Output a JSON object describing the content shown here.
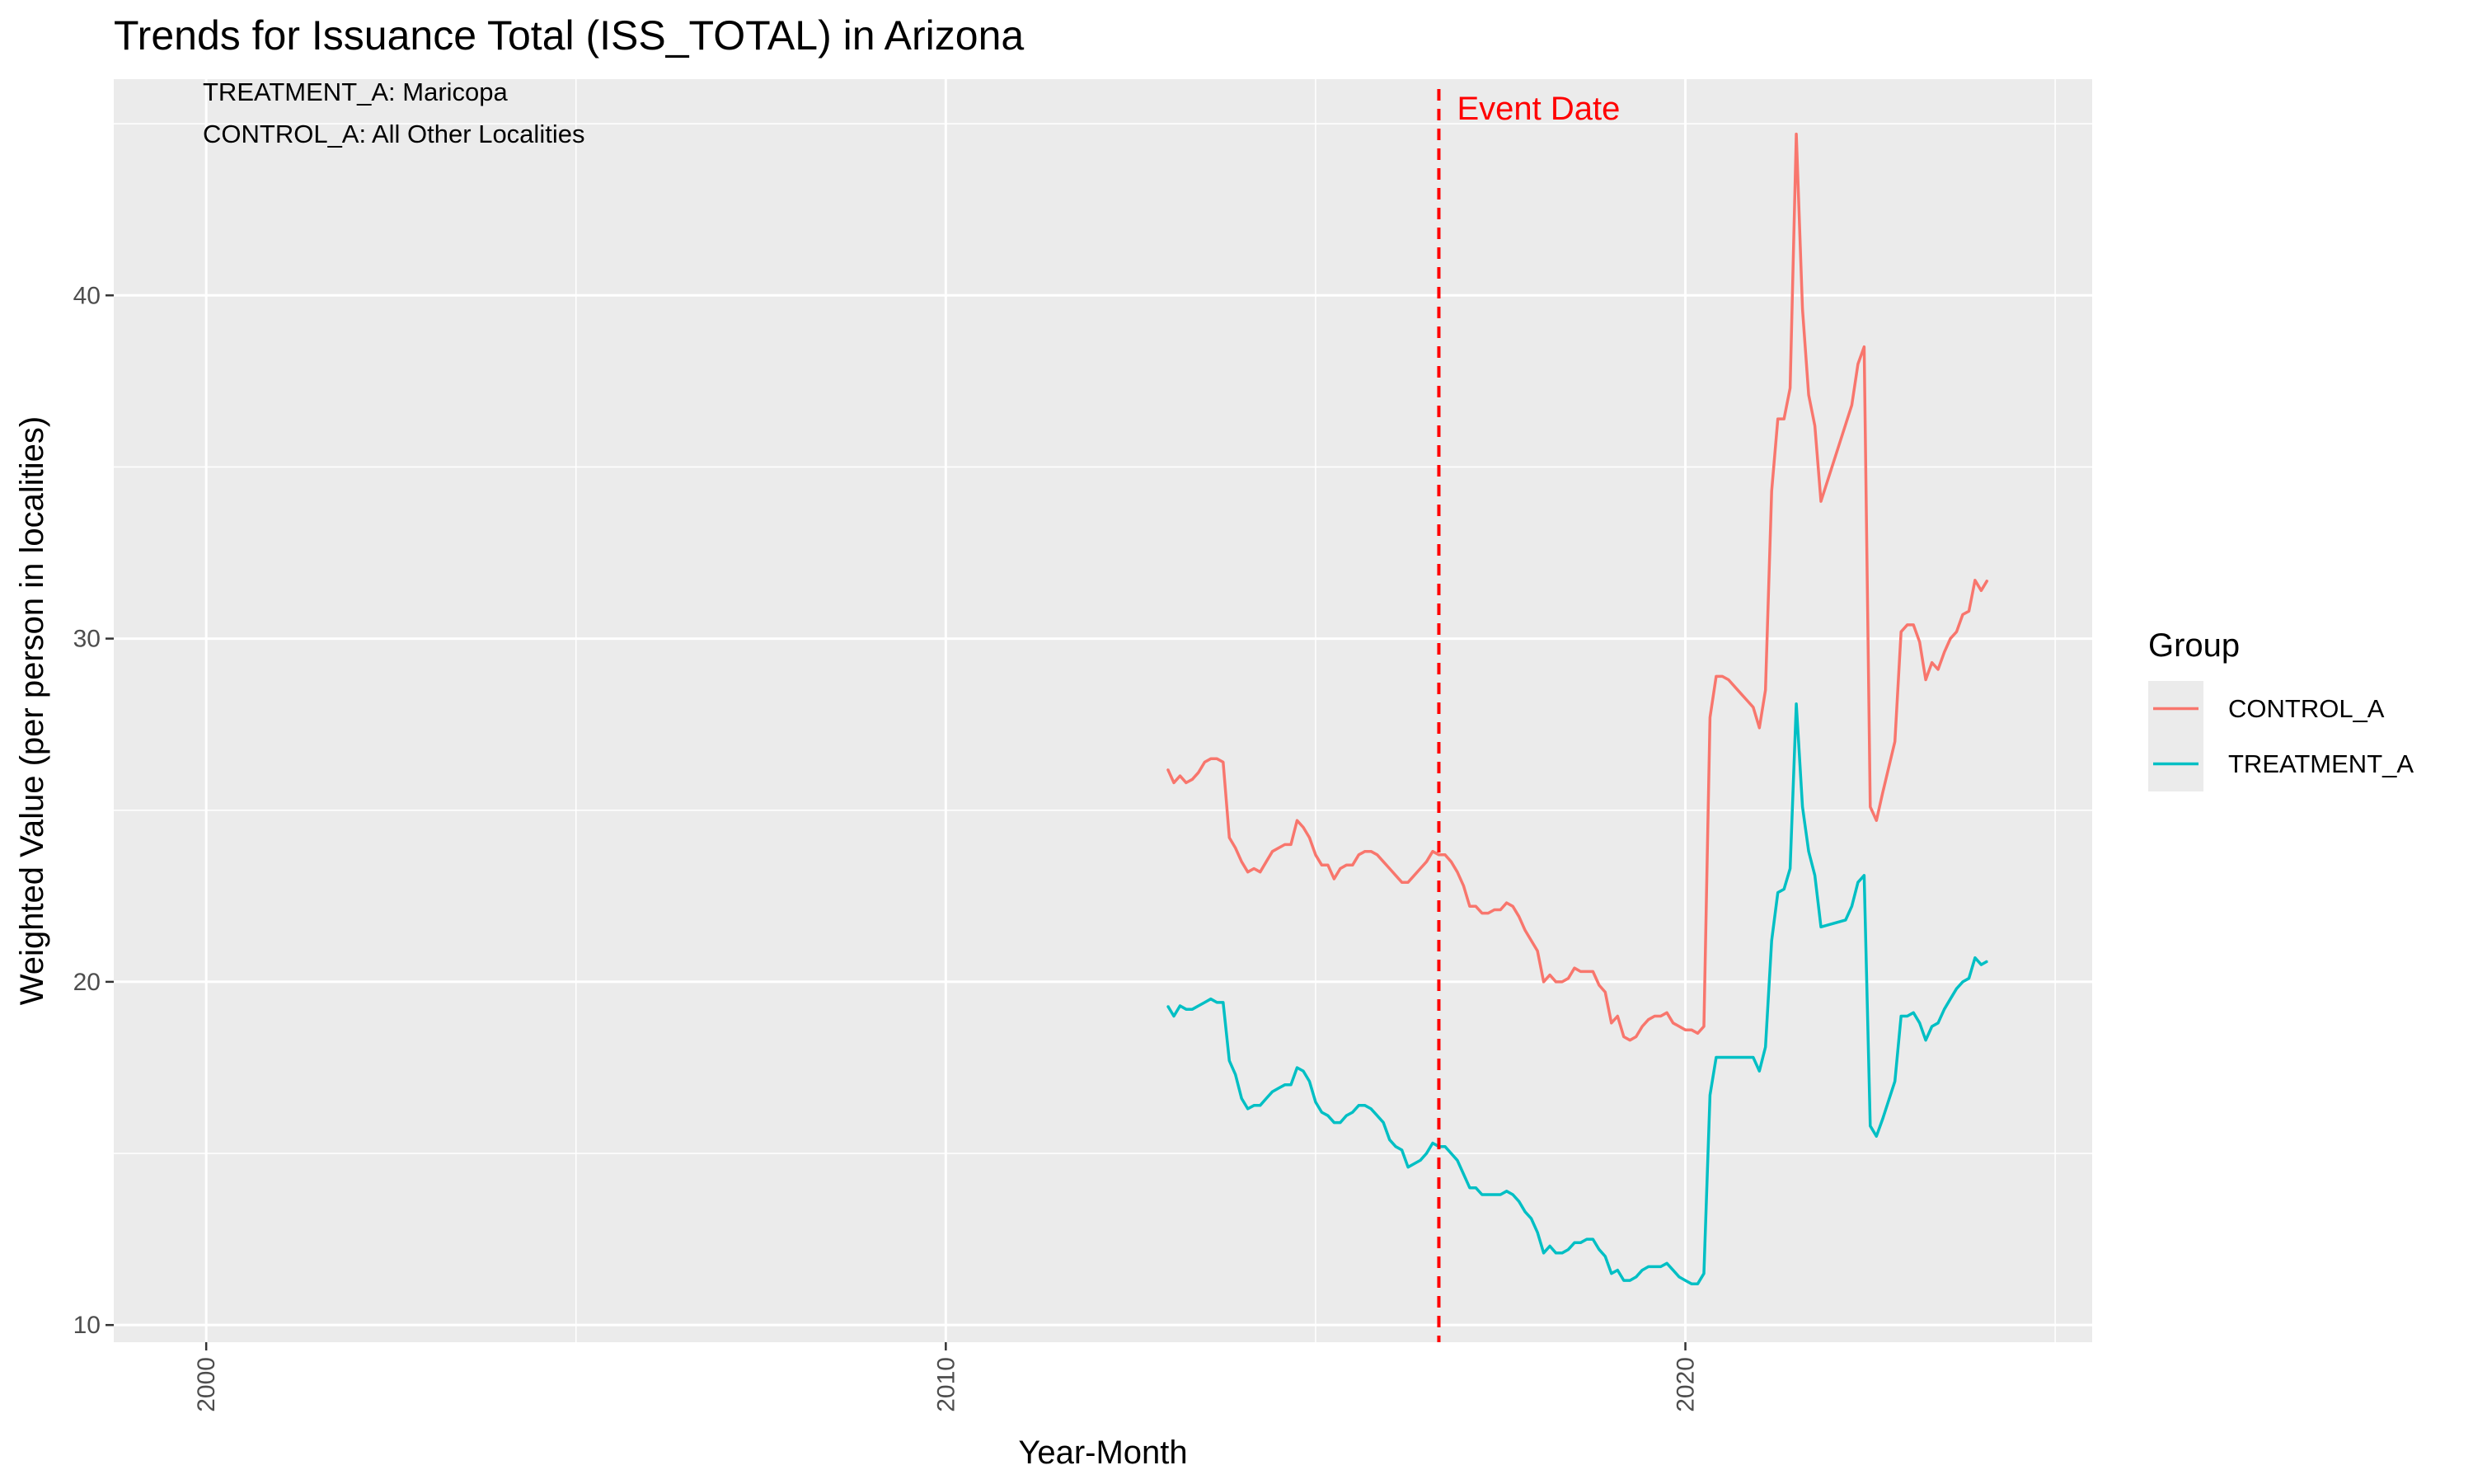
{
  "colors": {
    "control": "#F8766D",
    "treatment": "#00BFC4",
    "event": "#FF0000",
    "panel_bg": "#EBEBEB",
    "grid": "#FFFFFF"
  },
  "chart_data": {
    "type": "line",
    "title": "Trends for Issuance Total (ISS_TOTAL) in Arizona",
    "xlabel": "Year-Month",
    "ylabel": "Weighted Value (per person in localities)",
    "x_type": "date",
    "xlim": [
      "1998-10",
      "2025-07"
    ],
    "ylim": [
      9.5,
      46.3
    ],
    "x_ticks": [
      2000,
      2010,
      2020
    ],
    "y_ticks": [
      10,
      20,
      30,
      40
    ],
    "grid": true,
    "annotations": [
      "TREATMENT_A: Maricopa",
      "CONTROL_A: All Other Localities"
    ],
    "event": {
      "date": "2016-09",
      "label": "Event Date"
    },
    "legend": {
      "title": "Group",
      "position": "right",
      "entries": [
        "CONTROL_A",
        "TREATMENT_A"
      ]
    },
    "series": [
      {
        "name": "CONTROL_A",
        "color": "#F8766D",
        "points": [
          [
            "2013-01",
            26.2
          ],
          [
            "2013-02",
            25.8
          ],
          [
            "2013-03",
            26.0
          ],
          [
            "2013-04",
            25.8
          ],
          [
            "2013-05",
            25.9
          ],
          [
            "2013-06",
            26.1
          ],
          [
            "2013-07",
            26.4
          ],
          [
            "2013-08",
            26.5
          ],
          [
            "2013-09",
            26.5
          ],
          [
            "2013-10",
            26.4
          ],
          [
            "2013-11",
            24.2
          ],
          [
            "2013-12",
            23.9
          ],
          [
            "2014-01",
            23.5
          ],
          [
            "2014-02",
            23.2
          ],
          [
            "2014-03",
            23.3
          ],
          [
            "2014-04",
            23.2
          ],
          [
            "2014-05",
            23.5
          ],
          [
            "2014-06",
            23.8
          ],
          [
            "2014-07",
            23.9
          ],
          [
            "2014-08",
            24.0
          ],
          [
            "2014-09",
            24.0
          ],
          [
            "2014-10",
            24.7
          ],
          [
            "2014-11",
            24.5
          ],
          [
            "2014-12",
            24.2
          ],
          [
            "2015-01",
            23.7
          ],
          [
            "2015-02",
            23.4
          ],
          [
            "2015-03",
            23.4
          ],
          [
            "2015-04",
            23.0
          ],
          [
            "2015-05",
            23.3
          ],
          [
            "2015-06",
            23.4
          ],
          [
            "2015-07",
            23.4
          ],
          [
            "2015-08",
            23.7
          ],
          [
            "2015-09",
            23.8
          ],
          [
            "2015-10",
            23.8
          ],
          [
            "2015-11",
            23.7
          ],
          [
            "2015-12",
            23.5
          ],
          [
            "2016-01",
            23.3
          ],
          [
            "2016-02",
            23.1
          ],
          [
            "2016-03",
            22.9
          ],
          [
            "2016-04",
            22.9
          ],
          [
            "2016-05",
            23.1
          ],
          [
            "2016-06",
            23.3
          ],
          [
            "2016-07",
            23.5
          ],
          [
            "2016-08",
            23.8
          ],
          [
            "2016-09",
            23.7
          ],
          [
            "2016-10",
            23.7
          ],
          [
            "2016-11",
            23.5
          ],
          [
            "2016-12",
            23.2
          ],
          [
            "2017-01",
            22.8
          ],
          [
            "2017-02",
            22.2
          ],
          [
            "2017-03",
            22.2
          ],
          [
            "2017-04",
            22.0
          ],
          [
            "2017-05",
            22.0
          ],
          [
            "2017-06",
            22.1
          ],
          [
            "2017-07",
            22.1
          ],
          [
            "2017-08",
            22.3
          ],
          [
            "2017-09",
            22.2
          ],
          [
            "2017-10",
            21.9
          ],
          [
            "2017-11",
            21.5
          ],
          [
            "2017-12",
            21.2
          ],
          [
            "2018-01",
            20.9
          ],
          [
            "2018-02",
            20.0
          ],
          [
            "2018-03",
            20.2
          ],
          [
            "2018-04",
            20.0
          ],
          [
            "2018-05",
            20.0
          ],
          [
            "2018-06",
            20.1
          ],
          [
            "2018-07",
            20.4
          ],
          [
            "2018-08",
            20.3
          ],
          [
            "2018-09",
            20.3
          ],
          [
            "2018-10",
            20.3
          ],
          [
            "2018-11",
            19.9
          ],
          [
            "2018-12",
            19.7
          ],
          [
            "2019-01",
            18.8
          ],
          [
            "2019-02",
            19.0
          ],
          [
            "2019-03",
            18.4
          ],
          [
            "2019-04",
            18.3
          ],
          [
            "2019-05",
            18.4
          ],
          [
            "2019-06",
            18.7
          ],
          [
            "2019-07",
            18.9
          ],
          [
            "2019-08",
            19.0
          ],
          [
            "2019-09",
            19.0
          ],
          [
            "2019-10",
            19.1
          ],
          [
            "2019-11",
            18.8
          ],
          [
            "2019-12",
            18.7
          ],
          [
            "2020-01",
            18.6
          ],
          [
            "2020-02",
            18.6
          ],
          [
            "2020-03",
            18.5
          ],
          [
            "2020-04",
            18.7
          ],
          [
            "2020-05",
            27.7
          ],
          [
            "2020-06",
            28.9
          ],
          [
            "2020-07",
            28.9
          ],
          [
            "2020-08",
            28.8
          ],
          [
            "2020-09",
            28.6
          ],
          [
            "2020-10",
            28.4
          ],
          [
            "2020-11",
            28.2
          ],
          [
            "2020-12",
            28.0
          ],
          [
            "2021-01",
            27.4
          ],
          [
            "2021-02",
            28.5
          ],
          [
            "2021-03",
            34.3
          ],
          [
            "2021-04",
            36.4
          ],
          [
            "2021-05",
            36.4
          ],
          [
            "2021-06",
            37.3
          ],
          [
            "2021-07",
            44.7
          ],
          [
            "2021-08",
            39.6
          ],
          [
            "2021-09",
            37.1
          ],
          [
            "2021-10",
            36.2
          ],
          [
            "2021-11",
            34.0
          ],
          [
            "2022-04",
            36.8
          ],
          [
            "2022-05",
            38.0
          ],
          [
            "2022-06",
            38.5
          ],
          [
            "2022-07",
            25.1
          ],
          [
            "2022-08",
            24.7
          ],
          [
            "2022-09",
            25.5
          ],
          [
            "2022-11",
            27.0
          ],
          [
            "2022-12",
            30.2
          ],
          [
            "2023-01",
            30.4
          ],
          [
            "2023-02",
            30.4
          ],
          [
            "2023-03",
            29.9
          ],
          [
            "2023-04",
            28.8
          ],
          [
            "2023-05",
            29.3
          ],
          [
            "2023-06",
            29.1
          ],
          [
            "2023-07",
            29.6
          ],
          [
            "2023-08",
            30.0
          ],
          [
            "2023-09",
            30.2
          ],
          [
            "2023-10",
            30.7
          ],
          [
            "2023-11",
            30.8
          ],
          [
            "2023-12",
            31.7
          ],
          [
            "2024-01",
            31.4
          ],
          [
            "2024-02",
            31.7
          ]
        ]
      },
      {
        "name": "TREATMENT_A",
        "color": "#00BFC4",
        "points": [
          [
            "2013-01",
            19.3
          ],
          [
            "2013-02",
            19.0
          ],
          [
            "2013-03",
            19.3
          ],
          [
            "2013-04",
            19.2
          ],
          [
            "2013-05",
            19.2
          ],
          [
            "2013-06",
            19.3
          ],
          [
            "2013-07",
            19.4
          ],
          [
            "2013-08",
            19.5
          ],
          [
            "2013-09",
            19.4
          ],
          [
            "2013-10",
            19.4
          ],
          [
            "2013-11",
            17.7
          ],
          [
            "2013-12",
            17.3
          ],
          [
            "2014-01",
            16.6
          ],
          [
            "2014-02",
            16.3
          ],
          [
            "2014-03",
            16.4
          ],
          [
            "2014-04",
            16.4
          ],
          [
            "2014-05",
            16.6
          ],
          [
            "2014-06",
            16.8
          ],
          [
            "2014-07",
            16.9
          ],
          [
            "2014-08",
            17.0
          ],
          [
            "2014-09",
            17.0
          ],
          [
            "2014-10",
            17.5
          ],
          [
            "2014-11",
            17.4
          ],
          [
            "2014-12",
            17.1
          ],
          [
            "2015-01",
            16.5
          ],
          [
            "2015-02",
            16.2
          ],
          [
            "2015-03",
            16.1
          ],
          [
            "2015-04",
            15.9
          ],
          [
            "2015-05",
            15.9
          ],
          [
            "2015-06",
            16.1
          ],
          [
            "2015-07",
            16.2
          ],
          [
            "2015-08",
            16.4
          ],
          [
            "2015-09",
            16.4
          ],
          [
            "2015-10",
            16.3
          ],
          [
            "2015-11",
            16.1
          ],
          [
            "2015-12",
            15.9
          ],
          [
            "2016-01",
            15.4
          ],
          [
            "2016-02",
            15.2
          ],
          [
            "2016-03",
            15.1
          ],
          [
            "2016-04",
            14.6
          ],
          [
            "2016-05",
            14.7
          ],
          [
            "2016-06",
            14.8
          ],
          [
            "2016-07",
            15.0
          ],
          [
            "2016-08",
            15.3
          ],
          [
            "2016-09",
            15.2
          ],
          [
            "2016-10",
            15.2
          ],
          [
            "2016-11",
            15.0
          ],
          [
            "2016-12",
            14.8
          ],
          [
            "2017-01",
            14.4
          ],
          [
            "2017-02",
            14.0
          ],
          [
            "2017-03",
            14.0
          ],
          [
            "2017-04",
            13.8
          ],
          [
            "2017-05",
            13.8
          ],
          [
            "2017-06",
            13.8
          ],
          [
            "2017-07",
            13.8
          ],
          [
            "2017-08",
            13.9
          ],
          [
            "2017-09",
            13.8
          ],
          [
            "2017-10",
            13.6
          ],
          [
            "2017-11",
            13.3
          ],
          [
            "2017-12",
            13.1
          ],
          [
            "2018-01",
            12.7
          ],
          [
            "2018-02",
            12.1
          ],
          [
            "2018-03",
            12.3
          ],
          [
            "2018-04",
            12.1
          ],
          [
            "2018-05",
            12.1
          ],
          [
            "2018-06",
            12.2
          ],
          [
            "2018-07",
            12.4
          ],
          [
            "2018-08",
            12.4
          ],
          [
            "2018-09",
            12.5
          ],
          [
            "2018-10",
            12.5
          ],
          [
            "2018-11",
            12.2
          ],
          [
            "2018-12",
            12.0
          ],
          [
            "2019-01",
            11.5
          ],
          [
            "2019-02",
            11.6
          ],
          [
            "2019-03",
            11.3
          ],
          [
            "2019-04",
            11.3
          ],
          [
            "2019-05",
            11.4
          ],
          [
            "2019-06",
            11.6
          ],
          [
            "2019-07",
            11.7
          ],
          [
            "2019-08",
            11.7
          ],
          [
            "2019-09",
            11.7
          ],
          [
            "2019-10",
            11.8
          ],
          [
            "2019-11",
            11.6
          ],
          [
            "2019-12",
            11.4
          ],
          [
            "2020-01",
            11.3
          ],
          [
            "2020-02",
            11.2
          ],
          [
            "2020-03",
            11.2
          ],
          [
            "2020-04",
            11.5
          ],
          [
            "2020-05",
            16.7
          ],
          [
            "2020-06",
            17.8
          ],
          [
            "2020-07",
            17.8
          ],
          [
            "2020-08",
            17.8
          ],
          [
            "2020-09",
            17.8
          ],
          [
            "2020-10",
            17.8
          ],
          [
            "2020-11",
            17.8
          ],
          [
            "2020-12",
            17.8
          ],
          [
            "2021-01",
            17.4
          ],
          [
            "2021-02",
            18.1
          ],
          [
            "2021-03",
            21.2
          ],
          [
            "2021-04",
            22.6
          ],
          [
            "2021-05",
            22.7
          ],
          [
            "2021-06",
            23.3
          ],
          [
            "2021-07",
            28.1
          ],
          [
            "2021-08",
            25.1
          ],
          [
            "2021-09",
            23.8
          ],
          [
            "2021-10",
            23.1
          ],
          [
            "2021-11",
            21.6
          ],
          [
            "2022-03",
            21.8
          ],
          [
            "2022-04",
            22.2
          ],
          [
            "2022-05",
            22.9
          ],
          [
            "2022-06",
            23.1
          ],
          [
            "2022-07",
            15.8
          ],
          [
            "2022-08",
            15.5
          ],
          [
            "2022-09",
            16.0
          ],
          [
            "2022-11",
            17.1
          ],
          [
            "2022-12",
            19.0
          ],
          [
            "2023-01",
            19.0
          ],
          [
            "2023-02",
            19.1
          ],
          [
            "2023-03",
            18.8
          ],
          [
            "2023-04",
            18.3
          ],
          [
            "2023-05",
            18.7
          ],
          [
            "2023-06",
            18.8
          ],
          [
            "2023-07",
            19.2
          ],
          [
            "2023-08",
            19.5
          ],
          [
            "2023-09",
            19.8
          ],
          [
            "2023-10",
            20.0
          ],
          [
            "2023-11",
            20.1
          ],
          [
            "2023-12",
            20.7
          ],
          [
            "2024-01",
            20.5
          ],
          [
            "2024-02",
            20.6
          ]
        ]
      }
    ]
  }
}
